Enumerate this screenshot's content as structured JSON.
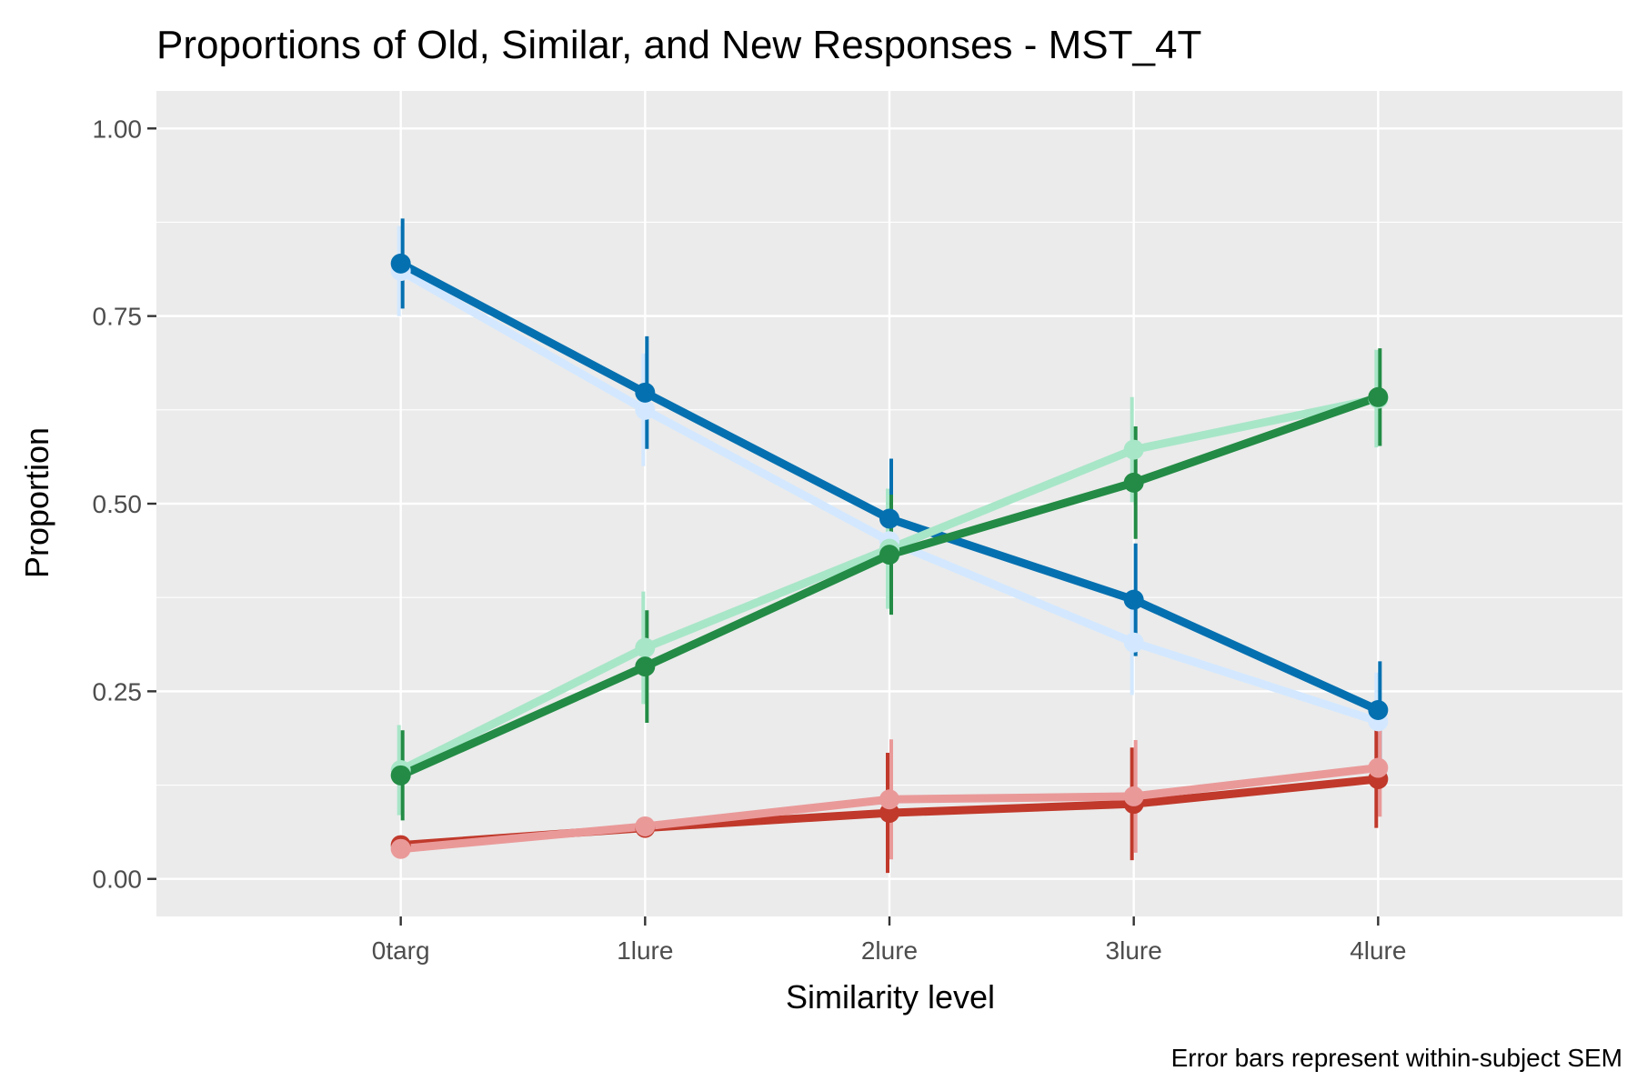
{
  "chart_data": {
    "type": "line",
    "title": "Proportions of Old, Similar, and New Responses - MST_4T",
    "xlabel": "Similarity level",
    "ylabel": "Proportion",
    "caption": "Error bars represent within-subject SEM",
    "categories": [
      "0targ",
      "1lure",
      "2lure",
      "3lure",
      "4lure"
    ],
    "ylim": [
      -0.05,
      1.05
    ],
    "yticks": [
      0.0,
      0.25,
      0.5,
      0.75,
      1.0
    ],
    "ytick_labels": [
      "0.00",
      "0.25",
      "0.50",
      "0.75",
      "1.00"
    ],
    "grid": true,
    "panel_background": "#ebebeb",
    "series": [
      {
        "color": "#d3e8ff",
        "values": [
          0.81,
          0.625,
          0.45,
          0.315,
          0.21
        ],
        "sem": [
          0.06,
          0.075,
          0.07,
          0.07,
          0.065
        ]
      },
      {
        "color": "#0570b0",
        "values": [
          0.82,
          0.648,
          0.48,
          0.372,
          0.225
        ],
        "sem": [
          0.06,
          0.075,
          0.08,
          0.075,
          0.065
        ]
      },
      {
        "color": "#a8e6c8",
        "values": [
          0.145,
          0.308,
          0.44,
          0.572,
          0.64
        ],
        "sem": [
          0.06,
          0.075,
          0.08,
          0.07,
          0.065
        ]
      },
      {
        "color": "#238b45",
        "values": [
          0.138,
          0.283,
          0.432,
          0.528,
          0.642
        ],
        "sem": [
          0.06,
          0.075,
          0.08,
          0.075,
          0.065
        ]
      },
      {
        "color": "#c0392b",
        "values": [
          0.045,
          0.068,
          0.088,
          0.1,
          0.133
        ],
        "sem": [
          0.0,
          0.0,
          0.08,
          0.075,
          0.065
        ]
      },
      {
        "color": "#ea9999",
        "values": [
          0.04,
          0.07,
          0.106,
          0.11,
          0.148
        ],
        "sem": [
          0.0,
          0.0,
          0.08,
          0.075,
          0.065
        ]
      }
    ]
  }
}
